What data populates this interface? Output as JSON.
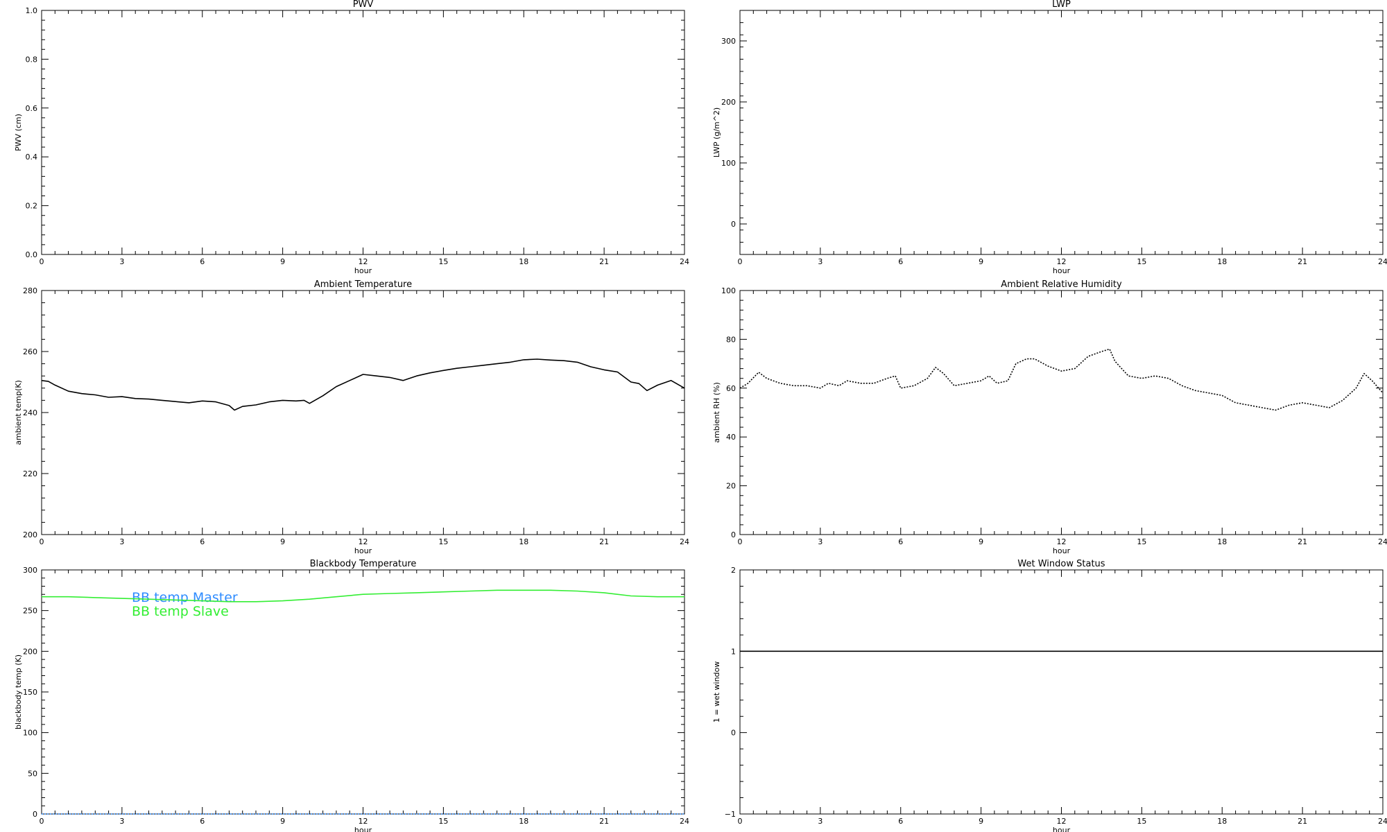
{
  "page": {
    "background": "#ffffff"
  },
  "colors": {
    "axes": "#000000",
    "bb_master": "#2f8cff",
    "bb_slave": "#33ee33"
  },
  "chart_data": [
    {
      "id": "pwv",
      "type": "line",
      "title": "PWV",
      "xlabel": "hour",
      "ylabel": "PWV (cm)",
      "xlim": [
        0,
        24
      ],
      "ylim": [
        0,
        1
      ],
      "x_ticks": [
        0,
        3,
        6,
        9,
        12,
        15,
        18,
        21,
        24
      ],
      "y_ticks": [
        0.0,
        0.2,
        0.4,
        0.6,
        0.8,
        1.0
      ],
      "y_tick_labels": [
        "0.0",
        "0.2",
        "0.4",
        "0.6",
        "0.8",
        "1.0"
      ],
      "series": []
    },
    {
      "id": "lwp",
      "type": "line",
      "title": "LWP",
      "xlabel": "hour",
      "ylabel": "LWP (g/m^2)",
      "xlim": [
        0,
        24
      ],
      "ylim": [
        -50,
        350
      ],
      "x_ticks": [
        0,
        3,
        6,
        9,
        12,
        15,
        18,
        21,
        24
      ],
      "y_ticks": [
        0,
        100,
        200,
        300
      ],
      "y_tick_labels": [
        "0",
        "100",
        "200",
        "300"
      ],
      "series": []
    },
    {
      "id": "ambient-temperature",
      "type": "line",
      "title": "Ambient Temperature",
      "xlabel": "hour",
      "ylabel": "ambient temp(K)",
      "xlim": [
        0,
        24
      ],
      "ylim": [
        200,
        280
      ],
      "x_ticks": [
        0,
        3,
        6,
        9,
        12,
        15,
        18,
        21,
        24
      ],
      "y_ticks": [
        200,
        220,
        240,
        260,
        280
      ],
      "y_tick_labels": [
        "200",
        "220",
        "240",
        "260",
        "280"
      ],
      "series": [
        {
          "color": "#000000",
          "style": "solid",
          "x": [
            0,
            0.25,
            0.5,
            1,
            1.5,
            2,
            2.5,
            3,
            3.5,
            4,
            4.5,
            5,
            5.5,
            6,
            6.5,
            7,
            7.2,
            7.5,
            8,
            8.5,
            9,
            9.5,
            9.8,
            10,
            10.5,
            11,
            11.5,
            12,
            12.5,
            13,
            13.5,
            14,
            14.5,
            15,
            15.5,
            16,
            16.5,
            17,
            17.5,
            18,
            18.5,
            19,
            19.5,
            20,
            20.5,
            21,
            21.5,
            22,
            22.3,
            22.6,
            23,
            23.5,
            24
          ],
          "y": [
            250.5,
            250.2,
            249,
            247,
            246.2,
            245.8,
            245,
            245.2,
            244.6,
            244.4,
            244,
            243.6,
            243.2,
            243.8,
            243.5,
            242.3,
            240.8,
            242,
            242.5,
            243.5,
            244,
            243.8,
            244,
            243,
            245.5,
            248.5,
            250.5,
            252.5,
            252,
            251.5,
            250.5,
            252,
            253,
            253.8,
            254.5,
            255,
            255.5,
            256,
            256.5,
            257.3,
            257.5,
            257.2,
            257,
            256.5,
            255,
            254,
            253.3,
            250,
            249.5,
            247.2,
            249,
            250.5,
            248
          ]
        }
      ]
    },
    {
      "id": "ambient-rh",
      "type": "line",
      "title": "Ambient Relative Humidity",
      "xlabel": "hour",
      "ylabel": "ambient RH (%)",
      "xlim": [
        0,
        24
      ],
      "ylim": [
        0,
        100
      ],
      "x_ticks": [
        0,
        3,
        6,
        9,
        12,
        15,
        18,
        21,
        24
      ],
      "y_ticks": [
        0,
        20,
        40,
        60,
        80,
        100
      ],
      "y_tick_labels": [
        "0",
        "20",
        "40",
        "60",
        "80",
        "100"
      ],
      "series": [
        {
          "color": "#000000",
          "style": "dotted",
          "x": [
            0,
            0.3,
            0.7,
            1,
            1.5,
            2,
            2.5,
            3,
            3.3,
            3.7,
            4,
            4.5,
            5,
            5.5,
            5.8,
            6,
            6.5,
            7,
            7.3,
            7.6,
            8,
            8.5,
            9,
            9.3,
            9.6,
            10,
            10.3,
            10.7,
            11,
            11.5,
            12,
            12.5,
            13,
            13.5,
            13.8,
            14,
            14.5,
            15,
            15.5,
            16,
            16.5,
            17,
            17.5,
            18,
            18.5,
            19,
            19.5,
            20,
            20.5,
            21,
            21.5,
            22,
            22.5,
            23,
            23.3,
            23.6,
            24
          ],
          "y": [
            60,
            62,
            66.5,
            64,
            62,
            61,
            61,
            60,
            62,
            61,
            63,
            62,
            62,
            64,
            65,
            60,
            61,
            64,
            68.5,
            66,
            61,
            62,
            63,
            65,
            62,
            63,
            70,
            72,
            72,
            69,
            67,
            68,
            73,
            75,
            76,
            71,
            65,
            64,
            65,
            64,
            61,
            59,
            58,
            57,
            54,
            53,
            52,
            51,
            53,
            54,
            53,
            52,
            55,
            60,
            66,
            63,
            58
          ]
        }
      ]
    },
    {
      "id": "blackbody-temperature",
      "type": "line",
      "title": "Blackbody Temperature",
      "xlabel": "hour",
      "ylabel": "blackbody temp (K)",
      "xlim": [
        0,
        24
      ],
      "ylim": [
        0,
        300
      ],
      "x_ticks": [
        0,
        3,
        6,
        9,
        12,
        15,
        18,
        21,
        24
      ],
      "y_ticks": [
        0,
        50,
        100,
        150,
        200,
        250,
        300
      ],
      "y_tick_labels": [
        "0",
        "50",
        "100",
        "150",
        "200",
        "250",
        "300"
      ],
      "series": [
        {
          "name": "BB temp Master",
          "color": "#2f8cff",
          "style": "dotted",
          "x": [
            0,
            24
          ],
          "y": [
            0,
            0
          ]
        },
        {
          "name": "BB temp Slave",
          "color": "#33ee33",
          "style": "solid",
          "x": [
            0,
            1,
            2,
            3,
            4,
            5,
            6,
            7,
            8,
            9,
            10,
            11,
            12,
            13,
            14,
            15,
            16,
            17,
            18,
            19,
            20,
            21,
            22,
            23,
            24
          ],
          "y": [
            267,
            267,
            266,
            265,
            264,
            263,
            262,
            261,
            261,
            262,
            264,
            267,
            270,
            271,
            272,
            273,
            274,
            275,
            275,
            275,
            274,
            272,
            268,
            267,
            267
          ]
        }
      ]
    },
    {
      "id": "wet-window-status",
      "type": "line",
      "title": "Wet Window Status",
      "xlabel": "hour",
      "ylabel": "1 = wet window",
      "xlim": [
        0,
        24
      ],
      "ylim": [
        -1,
        2
      ],
      "x_ticks": [
        0,
        3,
        6,
        9,
        12,
        15,
        18,
        21,
        24
      ],
      "y_ticks": [
        -1,
        0,
        1,
        2
      ],
      "y_tick_labels": [
        "−1",
        "0",
        "1",
        "2"
      ],
      "series": [
        {
          "color": "#000000",
          "style": "solid",
          "x": [
            0,
            24
          ],
          "y": [
            1,
            1
          ]
        }
      ]
    }
  ]
}
